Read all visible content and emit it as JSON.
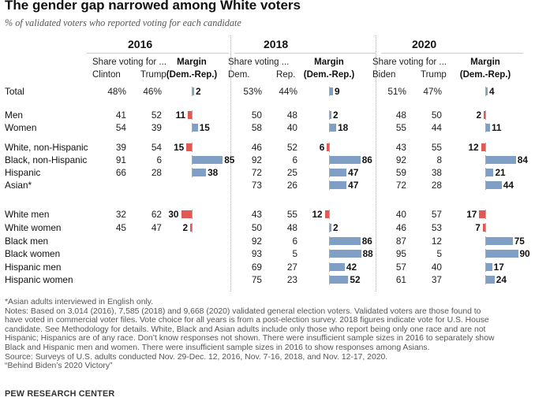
{
  "title": "The gender gap narrowed among White voters",
  "subtitle": "% of validated voters who reported voting for each candidate",
  "colors": {
    "dem": "#7f9fc4",
    "rep": "#e05a52"
  },
  "chart_data": {
    "type": "table",
    "panels": [
      {
        "year": "2016",
        "share_label": "Share voting for ...",
        "dem_name": "Clinton",
        "rep_name": "Trump",
        "margin_label": "Margin",
        "margin_sub": "(Dem.-Rep.)"
      },
      {
        "year": "2018",
        "share_label": "Share voting ...",
        "dem_name": "Dem.",
        "rep_name": "Rep.",
        "margin_label": "Margin",
        "margin_sub": "(Dem.-Rep.)"
      },
      {
        "year": "2020",
        "share_label": "Share voting for ...",
        "dem_name": "Biden",
        "rep_name": "Trump",
        "margin_label": "Margin",
        "margin_sub": "(Dem.-Rep.)"
      }
    ],
    "rows": [
      {
        "label": "Total",
        "y2016": [
          "48%",
          "46%",
          "2"
        ],
        "y2018": [
          "53%",
          "44%",
          "9"
        ],
        "y2020": [
          "51%",
          "47%",
          "4"
        ],
        "m": [
          2,
          9,
          4
        ]
      },
      {
        "label": "Men",
        "y2016": [
          "41",
          "52",
          "11"
        ],
        "y2018": [
          "50",
          "48",
          "2"
        ],
        "y2020": [
          "48",
          "50",
          "2"
        ],
        "m": [
          -11,
          2,
          -2
        ]
      },
      {
        "label": "Women",
        "y2016": [
          "54",
          "39",
          "15"
        ],
        "y2018": [
          "58",
          "40",
          "18"
        ],
        "y2020": [
          "55",
          "44",
          "11"
        ],
        "m": [
          15,
          18,
          11
        ]
      },
      {
        "label": "White, non-Hispanic",
        "y2016": [
          "39",
          "54",
          "15"
        ],
        "y2018": [
          "46",
          "52",
          "6"
        ],
        "y2020": [
          "43",
          "55",
          "12"
        ],
        "m": [
          -15,
          -6,
          -12
        ]
      },
      {
        "label": "Black, non-Hispanic",
        "y2016": [
          "91",
          "6",
          "85"
        ],
        "y2018": [
          "92",
          "6",
          "86"
        ],
        "y2020": [
          "92",
          "8",
          "84"
        ],
        "m": [
          85,
          86,
          84
        ]
      },
      {
        "label": "Hispanic",
        "y2016": [
          "66",
          "28",
          "38"
        ],
        "y2018": [
          "72",
          "25",
          "47"
        ],
        "y2020": [
          "59",
          "38",
          "21"
        ],
        "m": [
          38,
          47,
          21
        ]
      },
      {
        "label": "Asian*",
        "y2016": [
          "",
          "",
          ""
        ],
        "y2018": [
          "73",
          "26",
          "47"
        ],
        "y2020": [
          "72",
          "28",
          "44"
        ],
        "m": [
          null,
          47,
          44
        ]
      },
      {
        "label": "White men",
        "y2016": [
          "32",
          "62",
          "30"
        ],
        "y2018": [
          "43",
          "55",
          "12"
        ],
        "y2020": [
          "40",
          "57",
          "17"
        ],
        "m": [
          -30,
          -12,
          -17
        ]
      },
      {
        "label": "White women",
        "y2016": [
          "45",
          "47",
          "2"
        ],
        "y2018": [
          "50",
          "48",
          "2"
        ],
        "y2020": [
          "46",
          "53",
          "7"
        ],
        "m": [
          -2,
          2,
          -7
        ]
      },
      {
        "label": "Black men",
        "y2016": [
          "",
          "",
          ""
        ],
        "y2018": [
          "92",
          "6",
          "86"
        ],
        "y2020": [
          "87",
          "12",
          "75"
        ],
        "m": [
          null,
          86,
          75
        ]
      },
      {
        "label": "Black women",
        "y2016": [
          "",
          "",
          ""
        ],
        "y2018": [
          "93",
          "5",
          "88"
        ],
        "y2020": [
          "95",
          "5",
          "90"
        ],
        "m": [
          null,
          88,
          90
        ]
      },
      {
        "label": "Hispanic men",
        "y2016": [
          "",
          "",
          ""
        ],
        "y2018": [
          "69",
          "27",
          "42"
        ],
        "y2020": [
          "57",
          "40",
          "17"
        ],
        "m": [
          null,
          42,
          17
        ]
      },
      {
        "label": "Hispanic women",
        "y2016": [
          "",
          "",
          ""
        ],
        "y2018": [
          "75",
          "23",
          "52"
        ],
        "y2020": [
          "61",
          "37",
          "24"
        ],
        "m": [
          null,
          52,
          24
        ]
      }
    ]
  },
  "notes": [
    "*Asian adults interviewed in English only.",
    "Notes: Based on 3,014 (2016), 7,585 (2018) and 9,668 (2020) validated general election voters. Validated voters are those found to",
    "have voted in commercial voter files. Vote choice for all years is from a post-election survey. 2018 figures indicate vote for U.S. House",
    "candidate. See Methodology for details. White, Black and Asian adults include only those who report being only one race and are not",
    "Hispanic; Hispanics are of any race. Don’t know responses not shown. There were insufficient sample sizes in 2016 to separately show",
    "Black and Hispanic men and women. There were insufficient sample sizes in 2016 to show responses among Asians.",
    "Source: Surveys of U.S. adults conducted Nov. 29-Dec. 12, 2016, Nov. 7-16, 2018, and Nov. 12-17, 2020.",
    "“Behind Biden’s 2020 Victory”"
  ],
  "source_org": "PEW RESEARCH CENTER"
}
